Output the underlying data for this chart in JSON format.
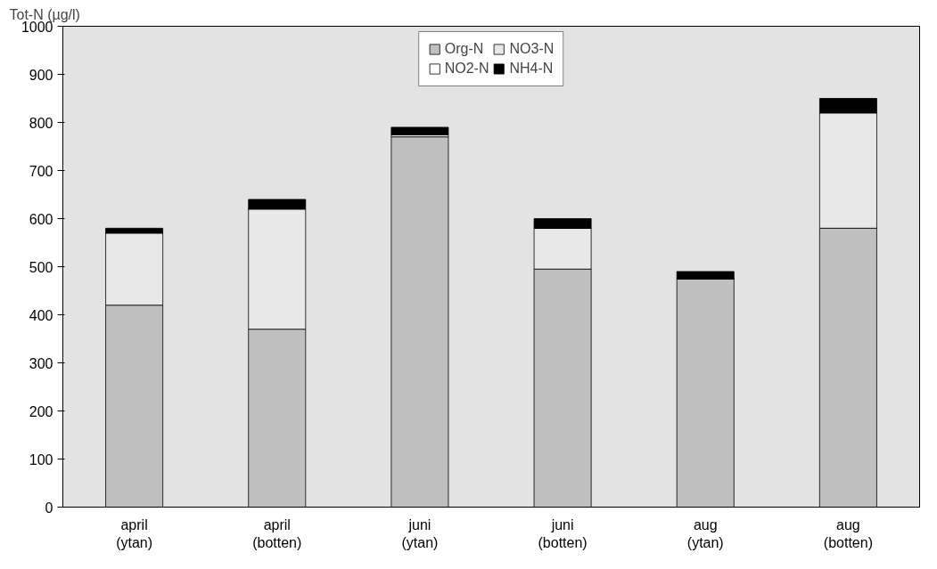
{
  "chart_data": {
    "type": "bar",
    "stacked": true,
    "ylabel": "Tot-N (µg/l)",
    "categories": [
      "april\n(ytan)",
      "april\n(botten)",
      "juni\n(ytan)",
      "juni\n(botten)",
      "aug\n(ytan)",
      "aug\n(botten)"
    ],
    "series": [
      {
        "name": "Org-N",
        "color": "#c0c0c0",
        "values": [
          420,
          370,
          770,
          495,
          475,
          580
        ]
      },
      {
        "name": "NO3-N",
        "color": "#e8e8e8",
        "values": [
          150,
          250,
          5,
          85,
          0,
          240
        ]
      },
      {
        "name": "NO2-N",
        "color": "#ffffff",
        "values": [
          0,
          0,
          0,
          0,
          0,
          0
        ]
      },
      {
        "name": "NH4-N",
        "color": "#000000",
        "values": [
          10,
          20,
          15,
          20,
          15,
          30
        ]
      }
    ],
    "ylim": [
      0,
      1000
    ],
    "yticks": [
      0,
      100,
      200,
      300,
      400,
      500,
      600,
      700,
      800,
      900,
      1000
    ],
    "grid": false,
    "legend": "top"
  }
}
